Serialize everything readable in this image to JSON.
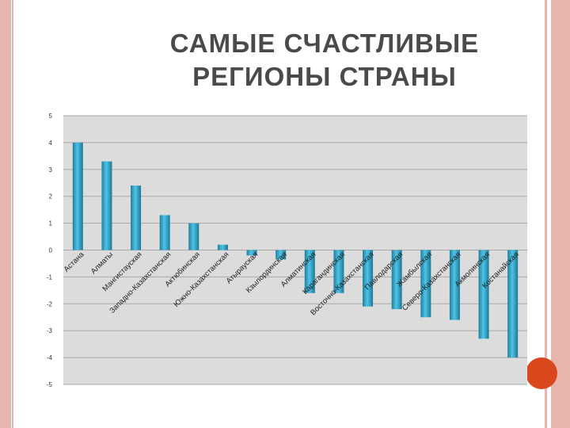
{
  "slide": {
    "title_line1": "САМЫЕ СЧАСТЛИВЫЕ",
    "title_line2": "РЕГИОНЫ СТРАНЫ",
    "colors": {
      "border": "#e7b5ae",
      "accent": "#d9481d",
      "bar": "#2ea9cf",
      "plot_bg": "#dcdcdc"
    }
  },
  "chart_data": {
    "type": "bar",
    "title": "",
    "xlabel": "",
    "ylabel": "",
    "ylim": [
      -5,
      5
    ],
    "yticks": [
      5,
      4,
      3,
      2,
      1,
      0,
      -1,
      -2,
      -3,
      -4,
      -5
    ],
    "grid": true,
    "legend": "none",
    "categories": [
      "Астана",
      "Алматы",
      "Мангистауская",
      "Западно-Казахстанская",
      "Актюбинская",
      "Южно-Казахстанская",
      "Атырауская",
      "Кзылординская",
      "Алматинская",
      "Карагандинская",
      "Восточно-Казахстанская",
      "Павлодарская",
      "Жамбылская",
      "Северо-Казахстанская",
      "Акмолинская",
      "Костанайская"
    ],
    "values": [
      4.0,
      3.3,
      2.4,
      1.3,
      1.0,
      0.2,
      -0.2,
      -0.35,
      -1.6,
      -1.6,
      -2.1,
      -2.2,
      -2.5,
      -2.6,
      -3.3,
      -4.0
    ]
  }
}
